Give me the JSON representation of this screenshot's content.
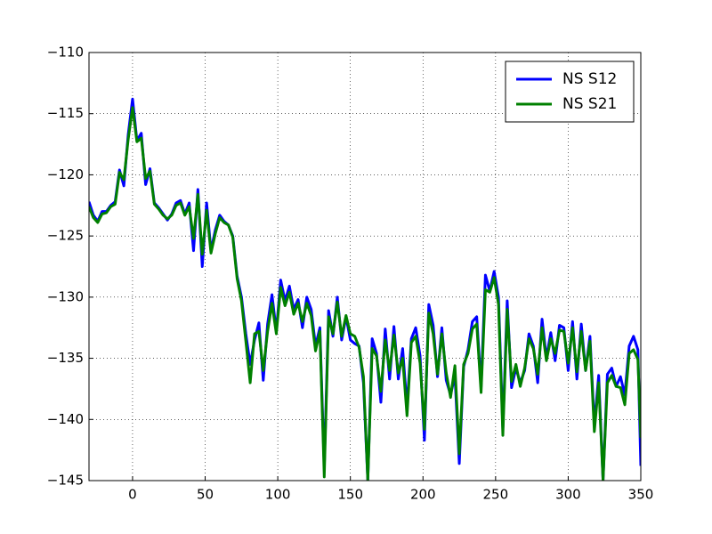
{
  "chart_data": {
    "type": "line",
    "x": [
      -30,
      -27,
      -24,
      -21,
      -18,
      -15,
      -12,
      -9,
      -6,
      -3,
      0,
      3,
      6,
      9,
      12,
      15,
      18,
      21,
      24,
      27,
      30,
      33,
      36,
      39,
      42,
      45,
      48,
      51,
      54,
      57,
      60,
      63,
      66,
      69,
      72,
      75,
      78,
      81,
      84,
      87,
      90,
      93,
      96,
      99,
      102,
      105,
      108,
      111,
      114,
      117,
      120,
      123,
      126,
      129,
      132,
      135,
      138,
      141,
      144,
      147,
      150,
      153,
      156,
      159,
      162,
      165,
      168,
      171,
      174,
      177,
      180,
      183,
      186,
      189,
      192,
      195,
      198,
      201,
      204,
      207,
      210,
      213,
      216,
      219,
      222,
      225,
      228,
      231,
      234,
      237,
      240,
      243,
      246,
      249,
      252,
      255,
      258,
      261,
      264,
      267,
      270,
      273,
      276,
      279,
      282,
      285,
      288,
      291,
      294,
      297,
      300,
      303,
      306,
      309,
      312,
      315,
      318,
      321,
      324,
      327,
      330,
      333,
      336,
      339,
      342,
      345,
      348,
      350
    ],
    "series": [
      {
        "name": "NS S12",
        "color": "#0000ff",
        "values": [
          -122.2,
          -123.3,
          -123.8,
          -123.0,
          -123.0,
          -122.5,
          -122.2,
          -119.6,
          -120.9,
          -116.7,
          -113.8,
          -117.2,
          -116.6,
          -120.8,
          -119.5,
          -122.3,
          -122.7,
          -123.2,
          -123.7,
          -123.2,
          -122.3,
          -122.1,
          -123.2,
          -122.3,
          -126.2,
          -121.2,
          -127.5,
          -122.3,
          -126.2,
          -124.5,
          -123.3,
          -123.8,
          -124.1,
          -125.0,
          -128.3,
          -130.0,
          -133.0,
          -135.5,
          -133.5,
          -132.1,
          -136.8,
          -132.2,
          -129.8,
          -132.8,
          -128.6,
          -130.3,
          -129.1,
          -131.0,
          -130.2,
          -132.5,
          -130.0,
          -131.0,
          -134.0,
          -132.5,
          -144.0,
          -131.1,
          -133.2,
          -130.0,
          -133.5,
          -131.6,
          -133.5,
          -133.8,
          -134.0,
          -137.0,
          -145.0,
          -133.4,
          -134.6,
          -138.6,
          -132.6,
          -136.7,
          -132.4,
          -136.7,
          -134.2,
          -139.0,
          -133.4,
          -132.5,
          -134.8,
          -141.7,
          -130.6,
          -132.3,
          -136.5,
          -132.5,
          -136.8,
          -138.0,
          -136.4,
          -143.6,
          -135.7,
          -134.3,
          -132.0,
          -131.6,
          -137.4,
          -128.2,
          -129.5,
          -127.9,
          -130.0,
          -140.8,
          -130.3,
          -137.4,
          -135.8,
          -137.0,
          -136.0,
          -133.0,
          -134.0,
          -137.0,
          -131.8,
          -135.0,
          -132.9,
          -135.2,
          -132.3,
          -132.5,
          -136.0,
          -132.0,
          -136.7,
          -132.2,
          -136.0,
          -133.2,
          -140.5,
          -136.4,
          -145.0,
          -136.3,
          -135.8,
          -137.3,
          -136.5,
          -138.0,
          -134.0,
          -133.2,
          -134.3,
          -143.8
        ]
      },
      {
        "name": "NS S21",
        "color": "#008000",
        "values": [
          -122.6,
          -123.5,
          -123.9,
          -123.2,
          -123.1,
          -122.6,
          -122.4,
          -119.8,
          -120.4,
          -117.1,
          -114.5,
          -117.3,
          -117.0,
          -120.3,
          -119.7,
          -122.4,
          -122.8,
          -123.3,
          -123.6,
          -123.3,
          -122.5,
          -122.3,
          -123.3,
          -122.6,
          -125.2,
          -121.6,
          -126.5,
          -122.9,
          -126.4,
          -124.8,
          -123.5,
          -123.9,
          -124.1,
          -125.1,
          -128.5,
          -130.3,
          -133.6,
          -137.0,
          -133.0,
          -132.8,
          -136.0,
          -132.8,
          -130.5,
          -133.0,
          -129.2,
          -130.7,
          -129.6,
          -131.4,
          -130.5,
          -132.0,
          -130.5,
          -131.5,
          -134.4,
          -132.8,
          -144.7,
          -131.6,
          -133.0,
          -130.4,
          -133.2,
          -131.5,
          -133.0,
          -133.2,
          -134.1,
          -136.5,
          -145.0,
          -134.2,
          -134.8,
          -137.7,
          -133.5,
          -136.0,
          -133.1,
          -136.2,
          -135.0,
          -139.7,
          -133.7,
          -133.2,
          -135.4,
          -140.8,
          -131.3,
          -133.0,
          -136.3,
          -133.0,
          -136.2,
          -138.2,
          -135.6,
          -142.8,
          -135.5,
          -134.6,
          -132.6,
          -132.2,
          -137.8,
          -129.4,
          -129.6,
          -128.4,
          -130.6,
          -141.3,
          -131.0,
          -136.9,
          -135.5,
          -137.3,
          -135.8,
          -133.4,
          -134.2,
          -136.3,
          -132.5,
          -135.2,
          -133.4,
          -134.6,
          -132.7,
          -132.8,
          -135.4,
          -132.5,
          -136.1,
          -132.8,
          -136.0,
          -133.6,
          -141.0,
          -137.0,
          -145.0,
          -137.0,
          -136.4,
          -137.3,
          -137.4,
          -138.8,
          -134.6,
          -134.3,
          -135.1,
          -141.5
        ]
      }
    ],
    "xlim": [
      -30,
      350
    ],
    "xticks": [
      0,
      50,
      100,
      150,
      200,
      250,
      300,
      350
    ],
    "ylim": [
      -145,
      -110
    ],
    "yticks": [
      {
        "value": -145,
        "label": "−145"
      },
      {
        "value": -140,
        "label": "−140"
      },
      {
        "value": -135,
        "label": "−135"
      },
      {
        "value": -130,
        "label": "−130"
      },
      {
        "value": -125,
        "label": "−125"
      },
      {
        "value": -120,
        "label": "−120"
      },
      {
        "value": -115,
        "label": "−115"
      },
      {
        "value": -110,
        "label": "−110"
      }
    ],
    "grid": true,
    "legend": "upper-right"
  }
}
